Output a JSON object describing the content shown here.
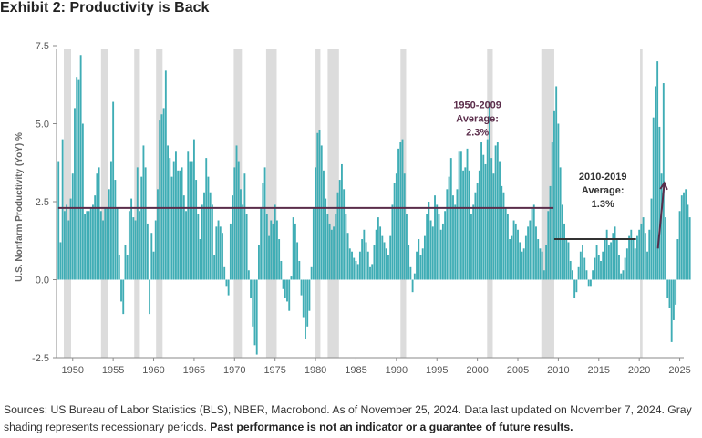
{
  "title": "Exhibit 2: Productivity is Back",
  "footnote": {
    "plain": "Sources: US Bureau of Labor Statistics (BLS), NBER, Macrobond. As of November 25, 2024. Data last updated on November 7, 2024. Gray shading represents recessionary periods. ",
    "bold": "Past performance is not an indicator or a guarantee of future results."
  },
  "chart_data": {
    "type": "bar",
    "title": "Exhibit 2: Productivity is Back",
    "ylabel": "U.S. Nonfarm Productivity (YoY) %",
    "xlabel": "",
    "ylim": [
      -2.5,
      7.5
    ],
    "xlim": [
      1948,
      2025.5
    ],
    "yticks": [
      -2.5,
      0.0,
      2.5,
      5.0,
      7.5
    ],
    "ytick_labels": [
      "-2.5",
      "0.0",
      "2.5",
      "5.0",
      "7.5"
    ],
    "xticks": [
      1950,
      1955,
      1960,
      1965,
      1970,
      1975,
      1980,
      1985,
      1990,
      1995,
      2000,
      2005,
      2010,
      2015,
      2020,
      2025
    ],
    "xtick_labels": [
      "1950",
      "1955",
      "1960",
      "1965",
      "1970",
      "1975",
      "1980",
      "1985",
      "1990",
      "1995",
      "2000",
      "2005",
      "2010",
      "2015",
      "2020",
      "2025"
    ],
    "series_name": "U.S. Nonfarm Productivity (YoY) %",
    "frequency": "quarterly",
    "start": 1948.25,
    "values": [
      3.8,
      1.2,
      4.5,
      2.2,
      2.4,
      1.9,
      2.6,
      3.4,
      5.5,
      6.5,
      6.4,
      7.2,
      5.0,
      2.1,
      2.2,
      2.2,
      2.3,
      2.4,
      2.7,
      3.4,
      3.6,
      2.2,
      1.9,
      2.3,
      2.3,
      2.9,
      3.8,
      5.7,
      3.2,
      2.3,
      0.8,
      -0.7,
      -1.1,
      1.1,
      0.8,
      2.2,
      2.6,
      2.0,
      1.9,
      3.6,
      2.2,
      3.3,
      4.3,
      3.6,
      1.8,
      -1.1,
      1.5,
      0.9,
      1.9,
      2.9,
      5.1,
      5.3,
      5.5,
      6.7,
      4.3,
      3.9,
      3.3,
      3.8,
      4.1,
      3.5,
      3.5,
      3.6,
      2.7,
      2.2,
      4.1,
      3.8,
      3.8,
      4.5,
      3.2,
      2.1,
      1.3,
      2.4,
      2.8,
      3.9,
      3.3,
      2.8,
      2.4,
      0.8,
      1.7,
      1.9,
      1.7,
      1.5,
      0.4,
      -0.2,
      -0.5,
      1.8,
      2.7,
      3.6,
      4.3,
      3.8,
      2.9,
      2.4,
      3.4,
      2.1,
      0.3,
      -0.6,
      -1.5,
      -2.1,
      -2.4,
      1.1,
      2.3,
      3.1,
      3.6,
      2.1,
      1.4,
      1.9,
      1.8,
      2.4,
      1.9,
      1.3,
      0.6,
      -0.3,
      -0.6,
      -0.7,
      -1.0,
      0.1,
      2.0,
      1.8,
      1.2,
      0.6,
      -0.5,
      -1.2,
      -1.9,
      -1.5,
      -1.0,
      0.4,
      2.3,
      3.6,
      4.7,
      4.8,
      4.3,
      3.5,
      2.6,
      2.1,
      1.8,
      1.6,
      1.7,
      2.1,
      2.8,
      3.2,
      3.7,
      2.9,
      2.1,
      1.5,
      1.0,
      0.9,
      0.7,
      0.6,
      0.5,
      0.9,
      1.3,
      1.6,
      1.2,
      0.9,
      0.4,
      0.5,
      1.1,
      1.6,
      2.0,
      1.7,
      1.4,
      1.2,
      1.0,
      0.8,
      1.4,
      2.4,
      3.1,
      3.4,
      4.2,
      4.4,
      4.5,
      3.4,
      2.1,
      1.1,
      0.4,
      -0.4,
      0.2,
      0.9,
      1.3,
      0.8,
      1.0,
      1.4,
      2.1,
      2.5,
      1.9,
      1.7,
      2.7,
      2.4,
      2.1,
      1.6,
      1.8,
      2.2,
      2.9,
      3.3,
      3.9,
      2.7,
      2.4,
      2.9,
      4.1,
      4.1,
      3.5,
      3.6,
      4.2,
      3.5,
      2.1,
      2.4,
      2.8,
      3.1,
      3.5,
      4.4,
      4.0,
      3.7,
      4.5,
      5.7,
      3.9,
      3.4,
      4.3,
      4.4,
      3.8,
      3.0,
      2.8,
      2.3,
      2.1,
      1.3,
      1.4,
      1.9,
      1.8,
      1.6,
      1.2,
      0.9,
      1.0,
      1.4,
      1.7,
      1.9,
      2.3,
      2.4,
      1.7,
      1.3,
      1.0,
      0.9,
      0.3,
      1.1,
      2.2,
      3.0,
      4.4,
      5.4,
      6.2,
      5.0,
      3.6,
      2.4,
      1.8,
      1.3,
      1.2,
      0.6,
      0.3,
      -0.6,
      -0.4,
      0.4,
      0.9,
      1.1,
      0.7,
      0.3,
      -0.2,
      -0.2,
      0.3,
      0.7,
      1.1,
      0.8,
      0.6,
      0.9,
      1.3,
      1.6,
      1.1,
      1.2,
      1.5,
      1.7,
      1.3,
      0.8,
      0.2,
      0.3,
      0.7,
      1.0,
      1.4,
      1.6,
      1.3,
      1.0,
      1.4,
      1.6,
      1.8,
      2.0,
      1.5,
      0.9,
      1.6,
      2.6,
      5.2,
      6.2,
      7.0,
      4.9,
      3.4,
      6.3,
      2.0,
      -0.6,
      -0.9,
      -2.0,
      -1.3,
      -0.8,
      1.3,
      2.2,
      2.7,
      2.8,
      2.9,
      2.4,
      2.0
    ],
    "recessions": [
      [
        1948.9,
        1949.8
      ],
      [
        1953.5,
        1954.4
      ],
      [
        1957.6,
        1958.3
      ],
      [
        1960.3,
        1961.1
      ],
      [
        1969.9,
        1970.9
      ],
      [
        1973.9,
        1975.2
      ],
      [
        1980.0,
        1980.6
      ],
      [
        1981.5,
        1982.9
      ],
      [
        1990.5,
        1991.2
      ],
      [
        2001.2,
        2001.9
      ],
      [
        2007.9,
        2009.5
      ],
      [
        2020.1,
        2020.4
      ]
    ],
    "reference_lines": [
      {
        "label": "1950–2009 Average: 2.3%",
        "value": 2.3,
        "from": 1948.2,
        "to": 2009.4
      },
      {
        "label": "2010–2019 Average: 1.3%",
        "value": 1.3,
        "from": 2009.5,
        "to": 2019.6
      }
    ],
    "annotations": [
      {
        "lines": [
          "1950-2009",
          "Average:",
          "2.3%"
        ],
        "anchor_year": 2000,
        "anchor_value": 5.5
      },
      {
        "lines": [
          "2010-2019",
          "Average:",
          "1.3%"
        ],
        "anchor_year": 2015.5,
        "anchor_value": 3.2
      },
      {
        "type": "arrow",
        "from": [
          2022.3,
          1.0
        ],
        "to": [
          2023.1,
          3.1
        ]
      }
    ],
    "colors": {
      "bar": "#3fadb5",
      "recession": "#dcdcdc",
      "avg_line": "#5a2c4a",
      "annotation": "#5a2c4a",
      "axis": "#8a8a8a"
    }
  }
}
